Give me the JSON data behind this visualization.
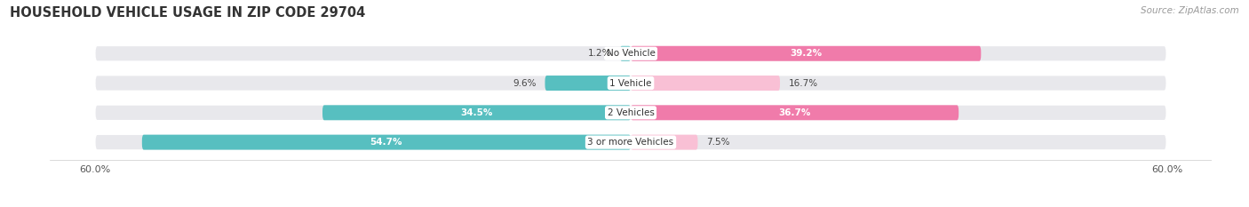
{
  "title": "HOUSEHOLD VEHICLE USAGE IN ZIP CODE 29704",
  "source": "Source: ZipAtlas.com",
  "categories": [
    "No Vehicle",
    "1 Vehicle",
    "2 Vehicles",
    "3 or more Vehicles"
  ],
  "owner_values": [
    1.2,
    9.6,
    34.5,
    54.7
  ],
  "renter_values": [
    39.2,
    16.7,
    36.7,
    7.5
  ],
  "owner_color": "#57BFC0",
  "renter_color": "#F07BAA",
  "renter_color_light": "#F9C0D5",
  "bar_bg_color": "#E8E8EC",
  "x_max": 60.0,
  "x_tick_label": "60.0%",
  "title_fontsize": 10.5,
  "source_fontsize": 7.5,
  "bar_label_fontsize": 7.5,
  "category_fontsize": 7.5,
  "legend_fontsize": 8,
  "axis_label_fontsize": 8
}
